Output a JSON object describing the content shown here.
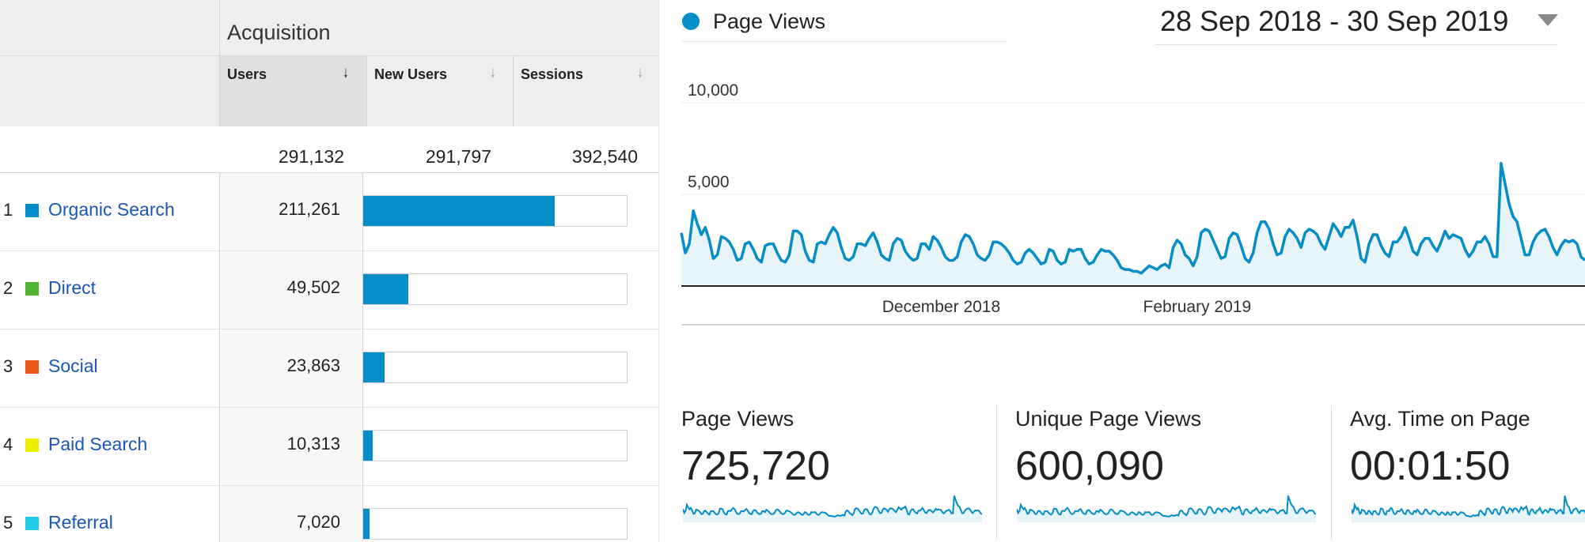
{
  "acquisition": {
    "title": "Acquisition",
    "columns": [
      {
        "label": "Users",
        "sorted": true
      },
      {
        "label": "New Users",
        "sorted": false
      },
      {
        "label": "Sessions",
        "sorted": false
      }
    ],
    "totals": [
      "291,132",
      "291,797",
      "392,540"
    ],
    "rows": [
      {
        "rank": "1",
        "channel": "Organic Search",
        "color": "#058dc7",
        "users": "211,261",
        "share": 0.7257
      },
      {
        "rank": "2",
        "channel": "Direct",
        "color": "#50b432",
        "users": "49,502",
        "share": 0.17
      },
      {
        "rank": "3",
        "channel": "Social",
        "color": "#ed561b",
        "users": "23,863",
        "share": 0.082
      },
      {
        "rank": "4",
        "channel": "Paid Search",
        "color": "#edef00",
        "users": "10,313",
        "share": 0.0354
      },
      {
        "rank": "5",
        "channel": "Referral",
        "color": "#24cbe5",
        "users": "7,020",
        "share": 0.0241
      }
    ]
  },
  "chart": {
    "legend_label": "Page Views",
    "date_range": "28 Sep 2018 - 30 Sep 2019",
    "caret_icon": "caret-down-icon",
    "line_color": "#058dc7"
  },
  "chart_data": {
    "type": "area",
    "series_name": "Page Views",
    "y_ticks": [
      "10,000",
      "5,000"
    ],
    "y_tick_values": [
      10000,
      5000
    ],
    "ylim": [
      0,
      10000
    ],
    "x_labels": [
      "December 2018",
      "February 2019"
    ],
    "x_label_indices": [
      65,
      129
    ],
    "values": [
      2900,
      1800,
      2300,
      4100,
      3400,
      2800,
      3200,
      2500,
      1500,
      1700,
      2700,
      2600,
      2400,
      2000,
      1400,
      1500,
      2300,
      2400,
      2000,
      1500,
      1300,
      2200,
      2300,
      2300,
      1800,
      1400,
      1300,
      1700,
      3000,
      3000,
      2800,
      1900,
      1400,
      1300,
      2300,
      2400,
      2300,
      2800,
      3200,
      2900,
      2100,
      1500,
      1400,
      1600,
      2300,
      2300,
      2200,
      2600,
      2900,
      2400,
      1700,
      1500,
      1400,
      2300,
      2600,
      2500,
      1900,
      1600,
      1400,
      1500,
      2300,
      2300,
      2000,
      2700,
      2500,
      2100,
      1600,
      1400,
      1400,
      1600,
      2400,
      2800,
      2700,
      2300,
      1700,
      1500,
      1400,
      1700,
      2400,
      2400,
      2300,
      2100,
      1800,
      1400,
      1200,
      1300,
      1800,
      2000,
      1800,
      1500,
      1200,
      1300,
      2000,
      1900,
      1400,
      1200,
      1300,
      2000,
      1900,
      2000,
      2000,
      1500,
      1200,
      1300,
      1700,
      2000,
      1900,
      1900,
      1700,
      1400,
      1000,
      900,
      900,
      800,
      800,
      700,
      900,
      1100,
      1000,
      900,
      1100,
      1200,
      1000,
      2100,
      2500,
      2300,
      1700,
      1500,
      1100,
      1600,
      2900,
      3100,
      3000,
      2500,
      2000,
      1500,
      1600,
      2600,
      2900,
      2800,
      2200,
      1500,
      1300,
      1800,
      2900,
      3500,
      3500,
      3100,
      2300,
      1700,
      1800,
      2700,
      3100,
      2900,
      2600,
      2100,
      2900,
      3100,
      3000,
      2800,
      2300,
      2000,
      2700,
      3400,
      3100,
      2700,
      3200,
      3200,
      3600,
      2700,
      1500,
      1300,
      2300,
      2800,
      2800,
      2200,
      1800,
      1600,
      2400,
      2400,
      2700,
      3200,
      2600,
      1900,
      1700,
      2300,
      2600,
      2600,
      2200,
      1900,
      2400,
      3000,
      2600,
      2800,
      2700,
      2600,
      2000,
      1600,
      1900,
      2400,
      2400,
      2700,
      2300,
      1600,
      1600,
      6700,
      5600,
      4500,
      3800,
      3500,
      2600,
      1700,
      1700,
      2400,
      2800,
      3000,
      3100,
      2700,
      2100,
      1700,
      2200,
      2500,
      2400,
      2500,
      2300,
      1600,
      1400
    ]
  },
  "metrics": [
    {
      "label": "Page Views",
      "value": "725,720"
    },
    {
      "label": "Unique Page Views",
      "value": "600,090"
    },
    {
      "label": "Avg. Time on Page",
      "value": "00:01:50"
    }
  ]
}
